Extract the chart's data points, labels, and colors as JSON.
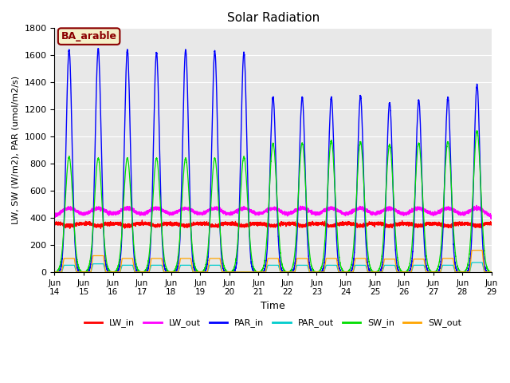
{
  "title": "Solar Radiation",
  "xlabel": "Time",
  "ylabel": "LW, SW (W/m2), PAR (umol/m2/s)",
  "ylim": [
    0,
    1800
  ],
  "yticks": [
    0,
    200,
    400,
    600,
    800,
    1000,
    1200,
    1400,
    1600,
    1800
  ],
  "annotation_text": "BA_arable",
  "annotation_color": "#8B0000",
  "annotation_bg": "#F5F0C8",
  "colors": {
    "LW_in": "#FF0000",
    "LW_out": "#FF00FF",
    "PAR_in": "#0000FF",
    "PAR_out": "#00CCCC",
    "SW_in": "#00DD00",
    "SW_out": "#FFA500"
  },
  "background_color": "#E8E8E8",
  "grid_color": "#FFFFFF",
  "n_days": 15,
  "par_peaks": [
    1640,
    1650,
    1640,
    1620,
    1640,
    1630,
    1620,
    1290,
    1290,
    1290,
    1300,
    1250,
    1270,
    1290,
    1380
  ],
  "sw_peaks": [
    850,
    840,
    840,
    840,
    840,
    840,
    850,
    950,
    950,
    970,
    960,
    940,
    950,
    960,
    1040
  ],
  "sw_out_peaks": [
    100,
    120,
    100,
    100,
    100,
    100,
    0,
    100,
    100,
    100,
    100,
    95,
    95,
    100,
    160
  ],
  "par_out_peaks": [
    50,
    60,
    50,
    50,
    50,
    50,
    0,
    50,
    50,
    50,
    50,
    50,
    50,
    50,
    70
  ],
  "lw_in_base": 360,
  "lw_out_base": 390,
  "lw_out_day_bump": 80
}
